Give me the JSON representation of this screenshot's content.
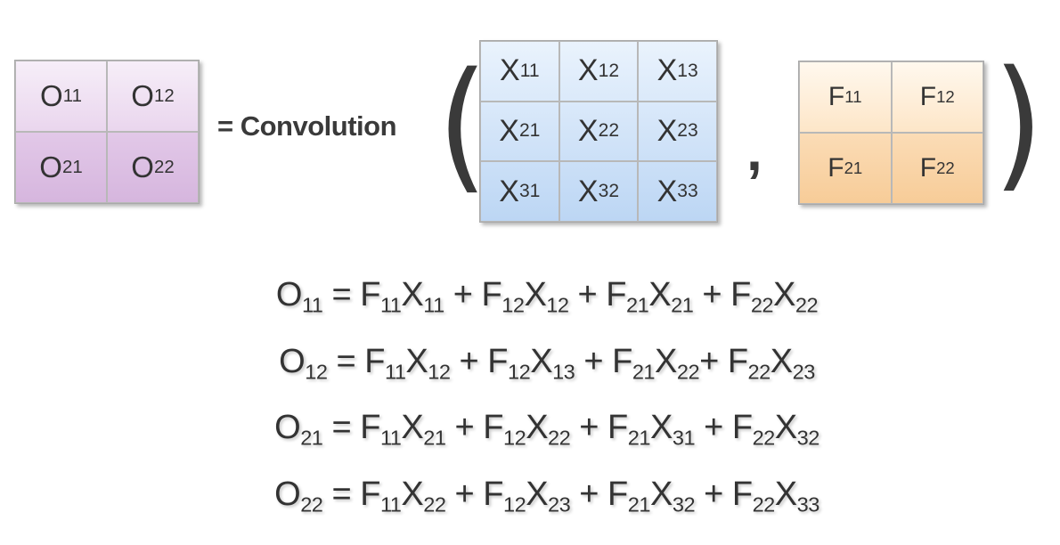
{
  "output_matrix": {
    "rows": [
      [
        [
          "O",
          "11"
        ],
        [
          "O",
          "12"
        ]
      ],
      [
        [
          "O",
          "21"
        ],
        [
          "O",
          "22"
        ]
      ]
    ]
  },
  "operator_label": "= Convolution",
  "input_matrix": {
    "rows": [
      [
        [
          "X",
          "11"
        ],
        [
          "X",
          "12"
        ],
        [
          "X",
          "13"
        ]
      ],
      [
        [
          "X",
          "21"
        ],
        [
          "X",
          "22"
        ],
        [
          "X",
          "23"
        ]
      ],
      [
        [
          "X",
          "31"
        ],
        [
          "X",
          "32"
        ],
        [
          "X",
          "33"
        ]
      ]
    ]
  },
  "separator": ",",
  "filter_matrix": {
    "rows": [
      [
        [
          "F",
          "11"
        ],
        [
          "F",
          "12"
        ]
      ],
      [
        [
          "F",
          "21"
        ],
        [
          "F",
          "22"
        ]
      ]
    ]
  },
  "paren_open": "(",
  "paren_close": ")",
  "equations": [
    [
      [
        "O",
        "11"
      ],
      [
        " = F",
        "11"
      ],
      [
        "X",
        "11"
      ],
      [
        " + F",
        "12"
      ],
      [
        "X",
        "12"
      ],
      [
        " + F",
        "21"
      ],
      [
        "X",
        "21"
      ],
      [
        " + F",
        "22"
      ],
      [
        "X",
        "22"
      ]
    ],
    [
      [
        "O",
        "12"
      ],
      [
        " = F",
        "11"
      ],
      [
        "X",
        "12"
      ],
      [
        " + F",
        "12"
      ],
      [
        "X",
        "13"
      ],
      [
        " + F",
        "21"
      ],
      [
        "X",
        "22"
      ],
      [
        "+ F",
        "22"
      ],
      [
        "X",
        "23"
      ]
    ],
    [
      [
        "O",
        "21"
      ],
      [
        " = F",
        "11"
      ],
      [
        "X",
        "21"
      ],
      [
        " + F",
        "12"
      ],
      [
        "X",
        "22"
      ],
      [
        " + F",
        "21"
      ],
      [
        "X",
        "31"
      ],
      [
        " + F",
        "22"
      ],
      [
        "X",
        "32"
      ]
    ],
    [
      [
        "O",
        "22"
      ],
      [
        " = F",
        "11"
      ],
      [
        "X",
        "22"
      ],
      [
        " + F",
        "12"
      ],
      [
        "X",
        "23"
      ],
      [
        " + F",
        "21"
      ],
      [
        "X",
        "32"
      ],
      [
        " + F",
        "22"
      ],
      [
        "X",
        "33"
      ]
    ]
  ],
  "colors": {
    "output_fill": "#e2c8e8",
    "input_fill": "#bcd6f4",
    "filter_fill": "#f7cc98",
    "text": "#333333"
  }
}
